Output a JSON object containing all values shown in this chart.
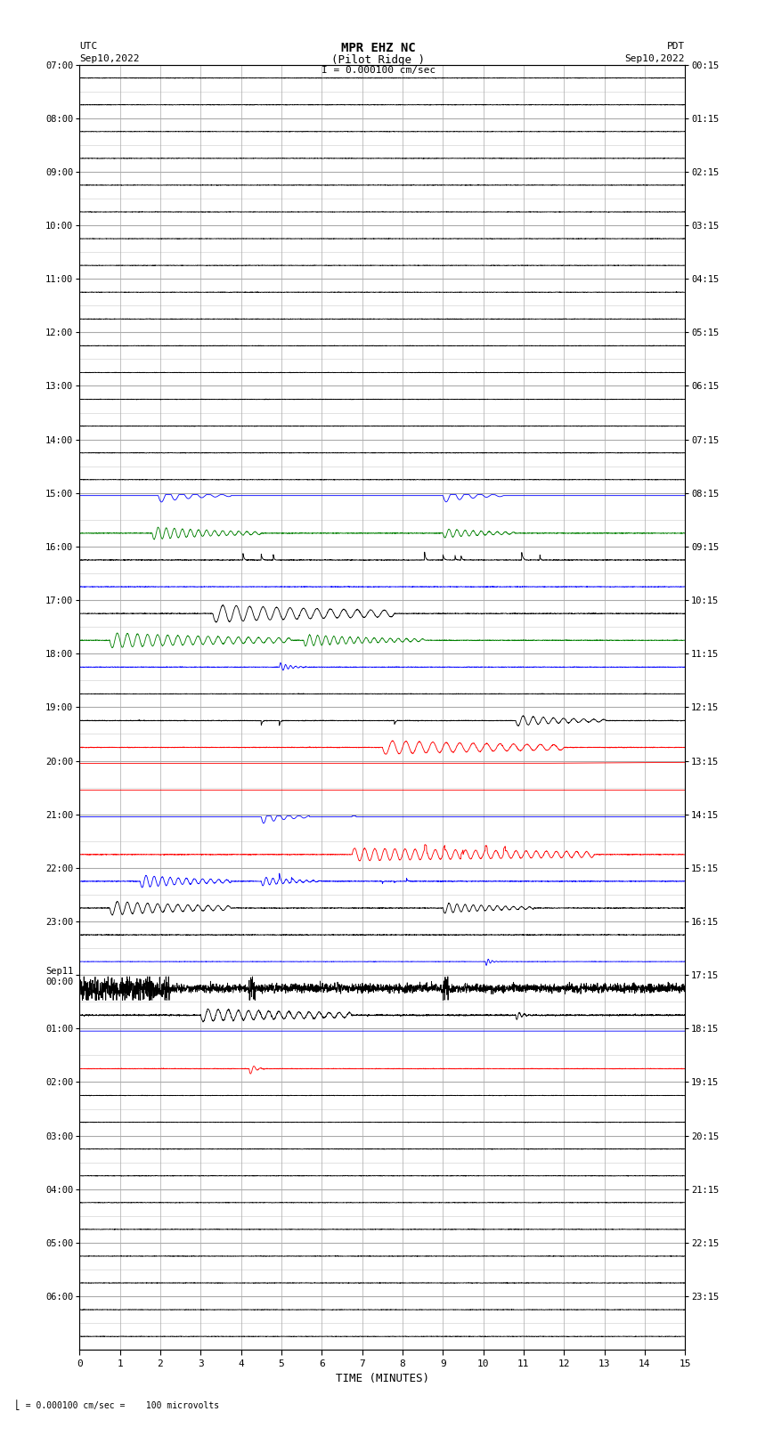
{
  "title_line1": "MPR EHZ NC",
  "title_line2": "(Pilot Ridge )",
  "title_line3": "I = 0.000100 cm/sec",
  "left_header1": "UTC",
  "left_header2": "Sep10,2022",
  "right_header1": "PDT",
  "right_header2": "Sep10,2022",
  "xlabel": "TIME (MINUTES)",
  "footer": "= 0.000100 cm/sec =    100 microvolts",
  "x_ticks": [
    0,
    1,
    2,
    3,
    4,
    5,
    6,
    7,
    8,
    9,
    10,
    11,
    12,
    13,
    14,
    15
  ],
  "utc_labels": [
    "07:00",
    "08:00",
    "09:00",
    "10:00",
    "11:00",
    "12:00",
    "13:00",
    "14:00",
    "15:00",
    "16:00",
    "17:00",
    "18:00",
    "19:00",
    "20:00",
    "21:00",
    "22:00",
    "23:00",
    "Sep11\n00:00",
    "01:00",
    "02:00",
    "03:00",
    "04:00",
    "05:00",
    "06:00"
  ],
  "pdt_labels": [
    "00:15",
    "01:15",
    "02:15",
    "03:15",
    "04:15",
    "05:15",
    "06:15",
    "07:15",
    "08:15",
    "09:15",
    "10:15",
    "11:15",
    "12:15",
    "13:15",
    "14:15",
    "15:15",
    "16:15",
    "17:15",
    "18:15",
    "19:15",
    "20:15",
    "21:15",
    "22:15",
    "23:15"
  ],
  "num_rows": 48,
  "background_color": "#ffffff",
  "grid_major_color": "#aaaaaa",
  "grid_minor_color": "#cccccc",
  "fig_width": 8.5,
  "fig_height": 16.13,
  "dpi": 100
}
